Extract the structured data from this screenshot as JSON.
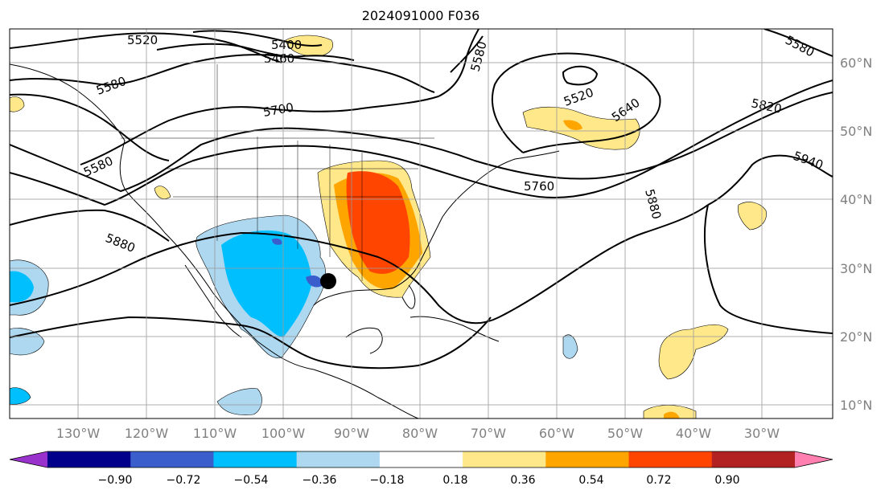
{
  "title": "2024091000 F036",
  "map": {
    "lon_labels": [
      "130°W",
      "120°W",
      "110°W",
      "100°W",
      "90°W",
      "80°W",
      "70°W",
      "60°W",
      "50°W",
      "40°W",
      "30°W"
    ],
    "lat_labels": [
      "60°N",
      "50°N",
      "40°N",
      "30°N",
      "20°N",
      "10°N"
    ],
    "contour_labels": [
      "5520",
      "5400",
      "5460",
      "5580",
      "5580",
      "5700",
      "5580",
      "5520",
      "5640",
      "5820",
      "5580",
      "5940",
      "5760",
      "5880",
      "5880"
    ],
    "storm_marker": "tropical-cyclone"
  },
  "colorbar": {
    "ticks": [
      "−0.90",
      "−0.72",
      "−0.54",
      "−0.36",
      "−0.18",
      "0.18",
      "0.36",
      "0.54",
      "0.72",
      "0.90"
    ],
    "colors": [
      "#9932cc",
      "#00008b",
      "#3a5fcd",
      "#00bfff",
      "#add8f0",
      "#ffffff",
      "#ffe88a",
      "#ffa500",
      "#ff4500",
      "#b22222",
      "#ff80b0"
    ]
  }
}
